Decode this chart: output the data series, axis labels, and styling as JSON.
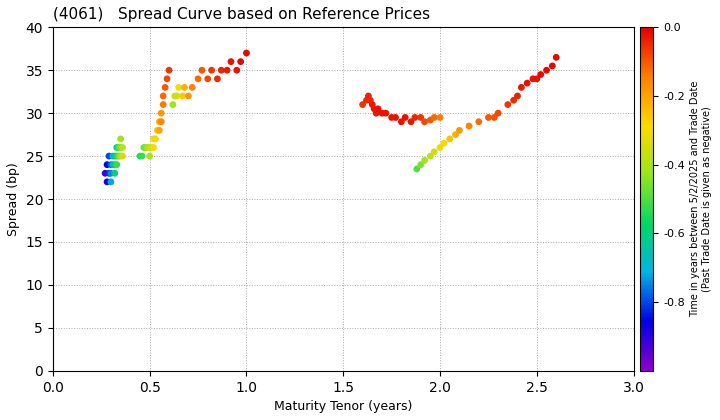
{
  "title": "(4061)   Spread Curve based on Reference Prices",
  "xlabel": "Maturity Tenor (years)",
  "ylabel": "Spread (bp)",
  "colorbar_label": "Time in years between 5/2/2025 and Trade Date\n(Past Trade Date is given as negative)",
  "xlim": [
    0.0,
    3.0
  ],
  "ylim": [
    0,
    40
  ],
  "xticks": [
    0.0,
    0.5,
    1.0,
    1.5,
    2.0,
    2.5,
    3.0
  ],
  "yticks": [
    0,
    5,
    10,
    15,
    20,
    25,
    30,
    35,
    40
  ],
  "colorbar_ticks": [
    0.0,
    -0.2,
    -0.4,
    -0.6,
    -0.8
  ],
  "vmin": -1.0,
  "vmax": 0.0,
  "cluster1": {
    "x": [
      0.27,
      0.28,
      0.28,
      0.29,
      0.29,
      0.3,
      0.3,
      0.3,
      0.31,
      0.31,
      0.32,
      0.32,
      0.32,
      0.33,
      0.33,
      0.33,
      0.34,
      0.34,
      0.35,
      0.35,
      0.35,
      0.36,
      0.36,
      0.45,
      0.46,
      0.47,
      0.48,
      0.49,
      0.5,
      0.5,
      0.51,
      0.52,
      0.52,
      0.53,
      0.54,
      0.55,
      0.55,
      0.56,
      0.56,
      0.57,
      0.57,
      0.58,
      0.59,
      0.6,
      0.62,
      0.63,
      0.64,
      0.65,
      0.67,
      0.68,
      0.7,
      0.72,
      0.75,
      0.77,
      0.8,
      0.82,
      0.85,
      0.87,
      0.9,
      0.92,
      0.95,
      0.97,
      1.0
    ],
    "y": [
      23,
      22,
      24,
      23,
      25,
      24,
      23,
      22,
      24,
      25,
      25,
      24,
      23,
      26,
      25,
      24,
      26,
      25,
      26,
      27,
      25,
      26,
      25,
      25,
      25,
      26,
      26,
      26,
      25,
      26,
      26,
      27,
      26,
      27,
      28,
      29,
      28,
      30,
      29,
      31,
      32,
      33,
      34,
      35,
      31,
      32,
      32,
      33,
      32,
      33,
      32,
      33,
      34,
      35,
      34,
      35,
      34,
      35,
      35,
      36,
      35,
      36,
      37
    ],
    "c": [
      -0.92,
      -0.88,
      -0.85,
      -0.82,
      -0.8,
      -0.78,
      -0.75,
      -0.72,
      -0.7,
      -0.68,
      -0.65,
      -0.62,
      -0.6,
      -0.58,
      -0.55,
      -0.52,
      -0.5,
      -0.48,
      -0.45,
      -0.42,
      -0.4,
      -0.38,
      -0.35,
      -0.55,
      -0.52,
      -0.48,
      -0.45,
      -0.42,
      -0.4,
      -0.38,
      -0.35,
      -0.32,
      -0.3,
      -0.28,
      -0.25,
      -0.22,
      -0.2,
      -0.18,
      -0.16,
      -0.14,
      -0.12,
      -0.1,
      -0.08,
      -0.06,
      -0.42,
      -0.38,
      -0.35,
      -0.3,
      -0.26,
      -0.22,
      -0.18,
      -0.15,
      -0.12,
      -0.1,
      -0.08,
      -0.06,
      -0.05,
      -0.04,
      -0.03,
      -0.02,
      -0.02,
      -0.01,
      -0.01
    ]
  },
  "cluster2": {
    "x": [
      1.6,
      1.62,
      1.63,
      1.64,
      1.65,
      1.66,
      1.67,
      1.68,
      1.7,
      1.72,
      1.75,
      1.77,
      1.8,
      1.82,
      1.85,
      1.87,
      1.9,
      1.92,
      1.95,
      1.97,
      2.0
    ],
    "y": [
      31,
      31.5,
      32,
      31.5,
      31,
      30.5,
      30,
      30.5,
      30,
      30,
      29.5,
      29.5,
      29,
      29.5,
      29,
      29.5,
      29.5,
      29.0,
      29.2,
      29.5,
      29.5
    ],
    "c": [
      -0.06,
      -0.05,
      -0.04,
      -0.04,
      -0.03,
      -0.03,
      -0.03,
      -0.02,
      -0.02,
      -0.02,
      -0.02,
      -0.02,
      -0.02,
      -0.02,
      -0.03,
      -0.04,
      -0.06,
      -0.08,
      -0.1,
      -0.12,
      -0.14
    ]
  },
  "cluster3": {
    "x": [
      1.88,
      1.9,
      1.92,
      1.95,
      1.97,
      2.0,
      2.02,
      2.05,
      2.08,
      2.1,
      2.15,
      2.2,
      2.25,
      2.28,
      2.3,
      2.35,
      2.38,
      2.4,
      2.42,
      2.45,
      2.48,
      2.5,
      2.52,
      2.55,
      2.58,
      2.6
    ],
    "y": [
      23.5,
      24,
      24.5,
      25,
      25.5,
      26,
      26.5,
      27,
      27.5,
      28,
      28.5,
      29,
      29.5,
      29.5,
      30,
      31,
      31.5,
      32,
      33,
      33.5,
      34,
      34,
      34.5,
      35,
      35.5,
      36.5
    ],
    "c": [
      -0.5,
      -0.46,
      -0.42,
      -0.38,
      -0.35,
      -0.32,
      -0.28,
      -0.25,
      -0.22,
      -0.18,
      -0.15,
      -0.12,
      -0.1,
      -0.09,
      -0.08,
      -0.06,
      -0.05,
      -0.04,
      -0.03,
      -0.02,
      -0.02,
      -0.02,
      -0.01,
      -0.01,
      -0.01,
      -0.01
    ]
  },
  "background_color": "#ffffff",
  "grid_color": "#aaaaaa",
  "dot_size": 15
}
